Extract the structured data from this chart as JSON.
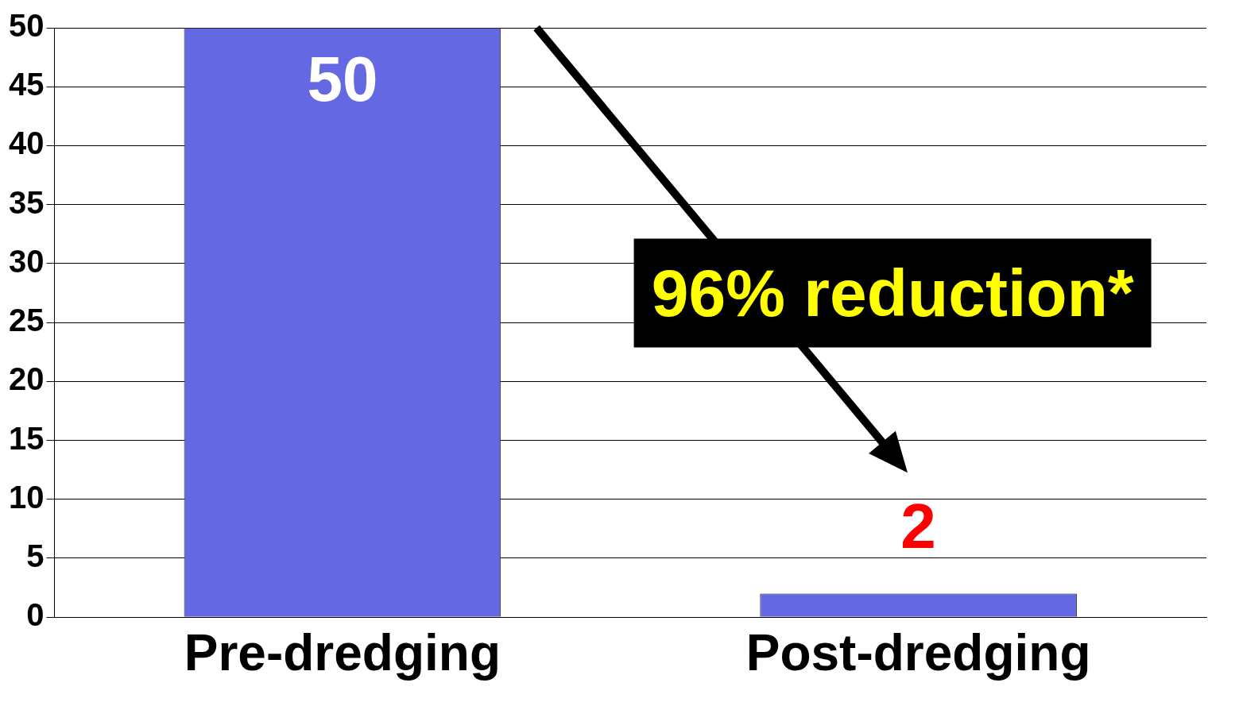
{
  "chart_data": {
    "type": "bar",
    "categories": [
      "Pre-dredging",
      "Post-dredging"
    ],
    "values": [
      50,
      2
    ],
    "color": "#6468e2",
    "ylim": [
      0,
      50
    ],
    "yticks": [
      0,
      5,
      10,
      15,
      20,
      25,
      30,
      35,
      40,
      45,
      50
    ],
    "grid": "y",
    "data_labels": true,
    "legend": false,
    "annotations": [
      "96% reduction*"
    ]
  }
}
